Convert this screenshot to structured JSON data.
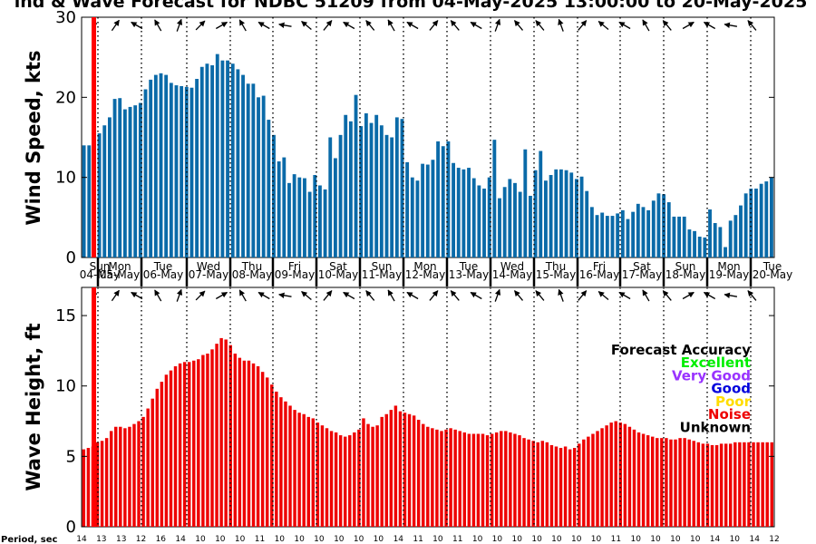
{
  "chart_data": [
    {
      "type": "bar",
      "title": "ind & Wave Forecast for NDBC 51209 from 04-May-2025 13:00:00 to 20-May-2025",
      "ylabel": "Wind Speed, kts",
      "ylim": [
        0,
        30
      ],
      "yticks": [
        "0",
        "10",
        "20",
        "30"
      ],
      "color": "#0a6aa8",
      "x_label_pairs": [
        [
          "Sun",
          "04-May"
        ],
        [
          "Mon",
          "05-May"
        ],
        [
          "Tue",
          "06-May"
        ],
        [
          "Wed",
          "07-May"
        ],
        [
          "Thu",
          "08-May"
        ],
        [
          "Fri",
          "09-May"
        ],
        [
          "Sat",
          "10-May"
        ],
        [
          "Sun",
          "11-May"
        ],
        [
          "Mon",
          "12-May"
        ],
        [
          "Tue",
          "13-May"
        ],
        [
          "Wed",
          "14-May"
        ],
        [
          "Thu",
          "15-May"
        ],
        [
          "Fri",
          "16-May"
        ],
        [
          "Sat",
          "17-May"
        ],
        [
          "Sun",
          "18-May"
        ],
        [
          "Mon",
          "19-May"
        ],
        [
          "Tue",
          "20-May"
        ]
      ],
      "values": [
        14.0,
        14.0,
        10.0,
        15.5,
        16.5,
        17.5,
        19.8,
        19.9,
        18.5,
        18.8,
        19.0,
        19.3,
        21.0,
        22.2,
        22.8,
        23.0,
        22.8,
        21.8,
        21.5,
        21.4,
        21.3,
        21.2,
        22.3,
        23.8,
        24.2,
        24.0,
        25.4,
        24.6,
        24.6,
        24.2,
        23.5,
        22.8,
        21.7,
        21.7,
        20.0,
        20.2,
        17.2,
        15.3,
        12.0,
        12.5,
        9.3,
        10.4,
        10.0,
        9.9,
        8.2,
        10.3,
        9.0,
        8.5,
        15.0,
        12.4,
        15.3,
        17.8,
        17.0,
        20.3,
        16.4,
        18.0,
        16.8,
        17.8,
        16.5,
        15.3,
        15.0,
        17.5,
        17.3,
        11.9,
        10.0,
        9.6,
        11.7,
        11.6,
        12.2,
        14.5,
        13.9,
        14.5,
        11.8,
        11.2,
        11.0,
        11.2,
        9.9,
        9.0,
        8.6,
        10.0,
        14.7,
        7.4,
        8.8,
        9.8,
        9.3,
        8.2,
        13.5,
        7.7,
        10.9,
        13.3,
        9.6,
        10.3,
        11.0,
        11.0,
        10.9,
        10.6,
        9.8,
        10.1,
        8.3,
        6.3,
        5.3,
        5.6,
        5.2,
        5.2,
        5.5,
        5.9,
        4.8,
        5.7,
        6.7,
        6.3,
        5.9,
        7.1,
        8.0,
        7.9,
        6.9,
        5.1,
        5.1,
        5.1,
        3.5,
        3.3,
        2.6,
        2.5,
        6.0,
        4.3,
        3.8,
        1.3,
        4.6,
        5.3,
        6.5,
        8.0,
        8.6,
        8.6,
        9.2,
        9.5,
        10.0
      ]
    },
    {
      "type": "bar",
      "ylabel": "Wave Height, ft",
      "ylim": [
        0,
        17
      ],
      "yticks": [
        "0",
        "5",
        "10",
        "15"
      ],
      "color": "#ee0000",
      "values": [
        5.5,
        5.6,
        5.7,
        6.0,
        6.1,
        6.3,
        6.8,
        7.1,
        7.1,
        7.0,
        7.1,
        7.3,
        7.5,
        7.8,
        8.4,
        9.1,
        9.8,
        10.3,
        10.8,
        11.1,
        11.4,
        11.6,
        11.7,
        11.7,
        11.8,
        11.9,
        12.2,
        12.3,
        12.6,
        13.0,
        13.4,
        13.3,
        12.9,
        12.3,
        12.0,
        11.8,
        11.8,
        11.6,
        11.4,
        11.0,
        10.6,
        10.1,
        9.6,
        9.2,
        8.9,
        8.6,
        8.3,
        8.1,
        8.0,
        7.8,
        7.7,
        7.4,
        7.2,
        7.0,
        6.8,
        6.7,
        6.5,
        6.4,
        6.5,
        6.7,
        6.9,
        7.7,
        7.3,
        7.1,
        7.2,
        7.8,
        8.0,
        8.3,
        8.6,
        8.2,
        8.1,
        8.0,
        7.9,
        7.6,
        7.3,
        7.1,
        7.0,
        6.9,
        6.8,
        6.9,
        7.0,
        6.9,
        6.8,
        6.7,
        6.6,
        6.6,
        6.6,
        6.6,
        6.5,
        6.6,
        6.7,
        6.8,
        6.8,
        6.7,
        6.6,
        6.5,
        6.3,
        6.2,
        6.1,
        6.0,
        6.1,
        6.0,
        5.8,
        5.7,
        5.6,
        5.7,
        5.5,
        5.6,
        5.9,
        6.2,
        6.4,
        6.6,
        6.8,
        7.0,
        7.2,
        7.4,
        7.5,
        7.4,
        7.3,
        7.1,
        6.9,
        6.7,
        6.6,
        6.5,
        6.4,
        6.3,
        6.3,
        6.3,
        6.2,
        6.2,
        6.3,
        6.3,
        6.2,
        6.1,
        6.0,
        5.9,
        5.9,
        5.8,
        5.8,
        5.9,
        5.9,
        5.9,
        6.0,
        6.0,
        6.0,
        6.0,
        6.0,
        6.0,
        6.0,
        6.0,
        6.0
      ],
      "period_label": "Period, sec",
      "period_ticks": [
        "14",
        "13",
        "13",
        "12",
        "16",
        "14",
        "10",
        "10",
        "10",
        "11",
        "10",
        "10",
        "10",
        "10",
        "10",
        "10",
        "14",
        "11",
        "10",
        "11",
        "10",
        "10",
        "10",
        "10",
        "10",
        "10",
        "10",
        "11",
        "10",
        "10",
        "10",
        "10",
        "14",
        "10",
        "14",
        "12"
      ],
      "legend": {
        "title": "Forecast Accuracy",
        "entries": [
          {
            "label": "Excellent",
            "color": "#00ee00"
          },
          {
            "label": "Very Good",
            "color": "#9933ff"
          },
          {
            "label": "Good",
            "color": "#0000dd"
          },
          {
            "label": "Poor",
            "color": "#ffdd00"
          },
          {
            "label": "Noise",
            "color": "#ee0000"
          },
          {
            "label": "Unknown",
            "color": "#000000"
          }
        ]
      }
    }
  ]
}
